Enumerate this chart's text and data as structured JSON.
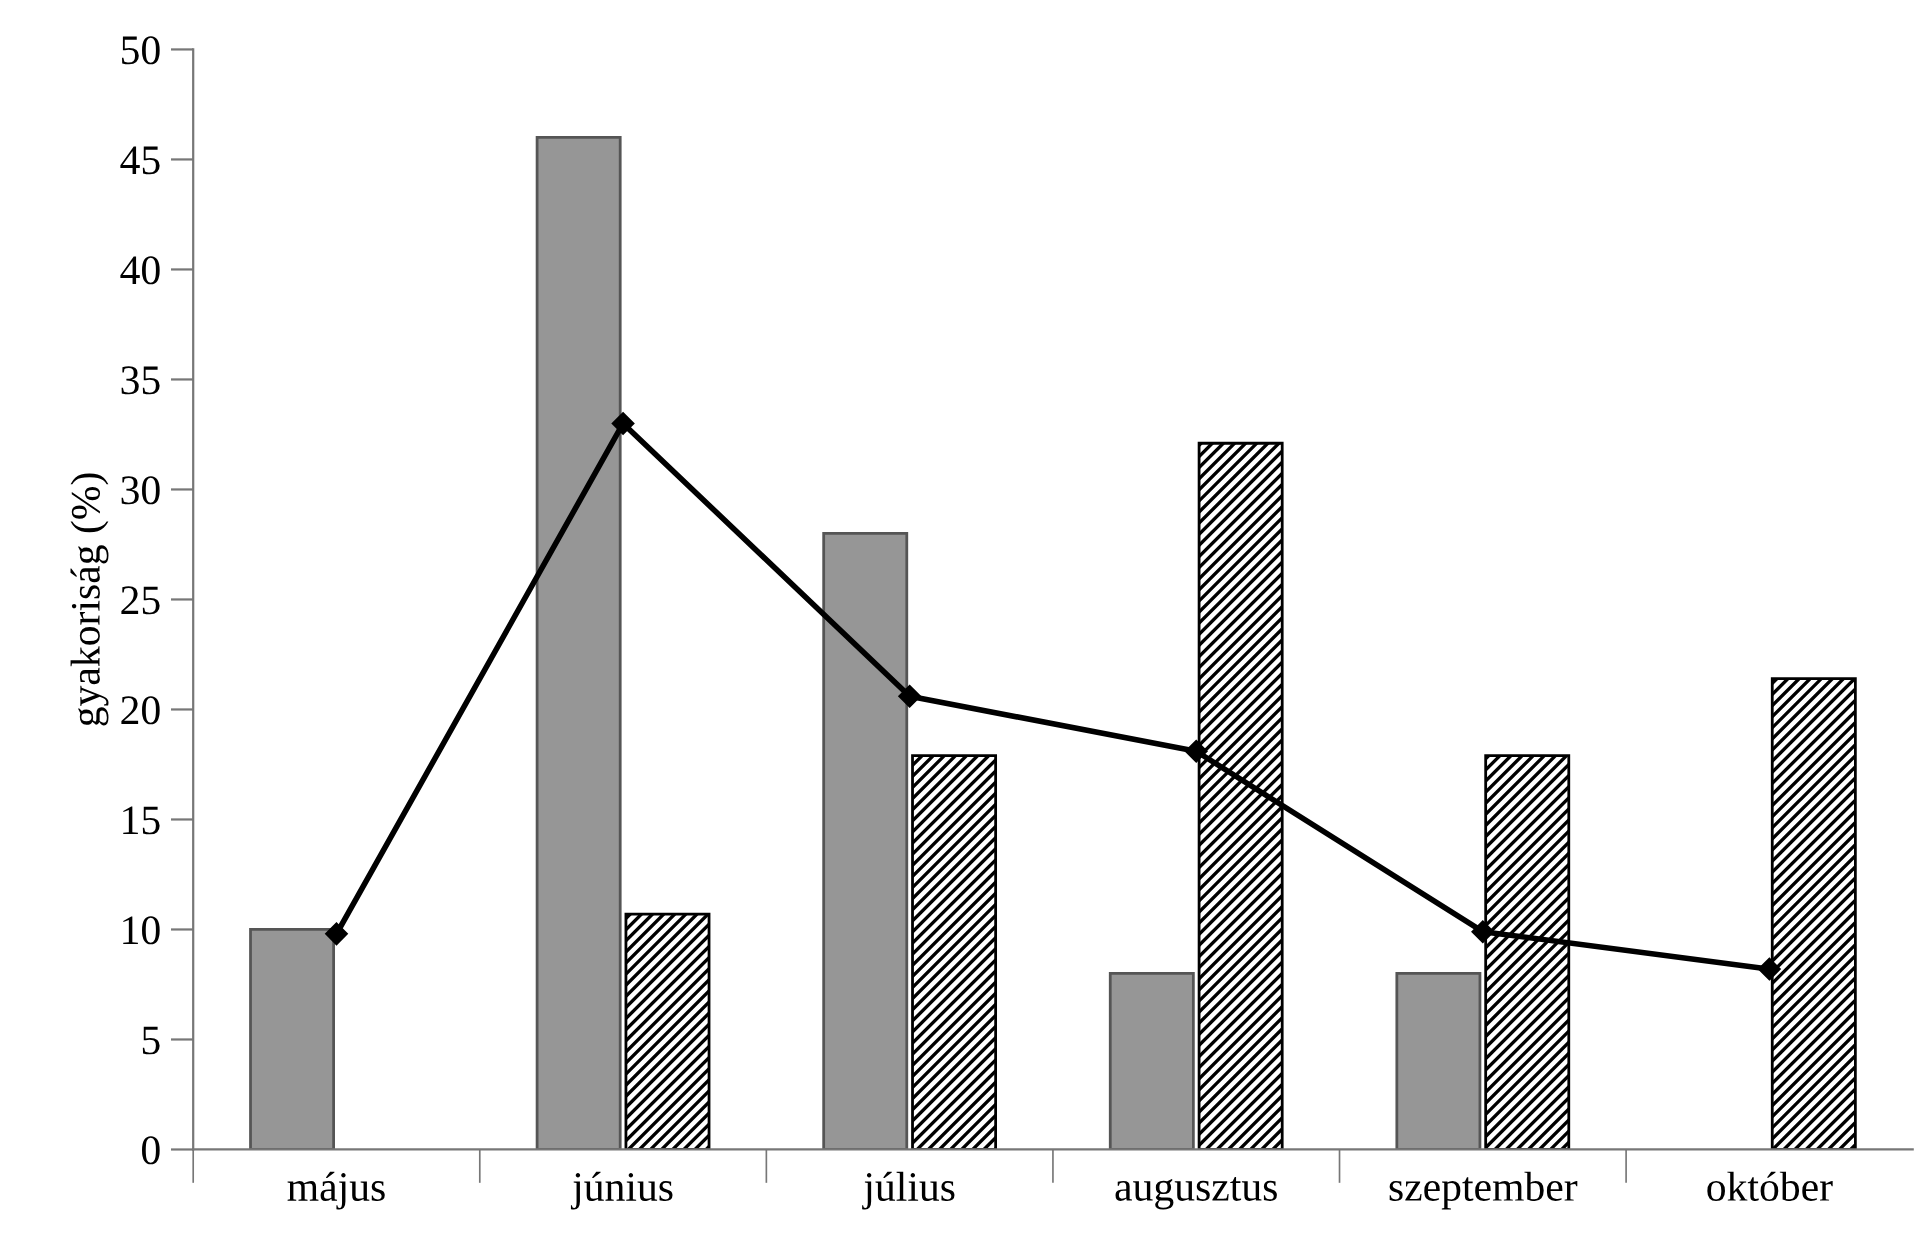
{
  "chart_data": {
    "type": "bar",
    "ylabel": "gyakoriság (%)",
    "categories": [
      "május",
      "június",
      "július",
      "augusztus",
      "szeptember",
      "október"
    ],
    "series": [
      {
        "color": "#969696",
        "values": [
          10,
          46,
          28,
          8,
          8,
          null
        ]
      },
      {
        "color": "#000000",
        "values": [
          null,
          10.7,
          17.9,
          32.1,
          17.9,
          21.4
        ]
      },
      {
        "type": "line",
        "color": "#000000",
        "marker": "diamond",
        "line_style": "solid",
        "values": [
          9.8,
          33.0,
          20.6,
          18.1,
          9.9,
          8.2
        ]
      }
    ],
    "ylim": [
      0,
      50
    ],
    "yticks": [
      0,
      5,
      10,
      15,
      20,
      25,
      30,
      35,
      40,
      45,
      50
    ],
    "grid": false,
    "legend": false
  }
}
